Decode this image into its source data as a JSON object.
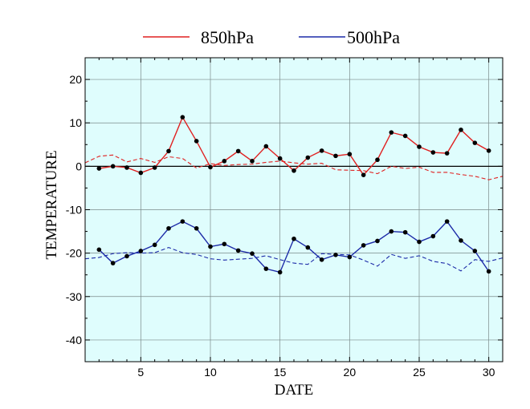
{
  "chart_data": {
    "type": "line",
    "xlabel": "DATE",
    "ylabel": "TEMPERATURE",
    "xlim": [
      1,
      31
    ],
    "ylim": [
      -45,
      25
    ],
    "xticks": [
      5,
      10,
      15,
      20,
      25,
      30
    ],
    "yticks": [
      20,
      10,
      0,
      -10,
      -20,
      -30,
      -40
    ],
    "grid": true,
    "zero_line": true,
    "background_color": "#dffdfd",
    "legend_position": "top",
    "series": [
      {
        "name": "850hPa",
        "color": "#e02020",
        "style": "solid-markers",
        "x": [
          2,
          3,
          4,
          5,
          6,
          7,
          8,
          9,
          10,
          11,
          12,
          13,
          14,
          15,
          16,
          17,
          18,
          19,
          20,
          21,
          22,
          23,
          24,
          25,
          26,
          27,
          28,
          29,
          30
        ],
        "values": [
          -0.5,
          0,
          -0.3,
          -1.5,
          -0.3,
          3.5,
          11.3,
          5.8,
          -0.2,
          1.2,
          3.5,
          1.2,
          4.6,
          1.8,
          -1,
          2,
          3.6,
          2.4,
          2.8,
          -2,
          1.5,
          7.8,
          7,
          4.5,
          3.2,
          3,
          8.4,
          5.4,
          3.6
        ]
      },
      {
        "name": "500hPa",
        "color": "#1c2aa8",
        "style": "solid-markers",
        "x": [
          2,
          3,
          4,
          5,
          6,
          7,
          8,
          9,
          10,
          11,
          12,
          13,
          14,
          15,
          16,
          17,
          18,
          19,
          20,
          21,
          22,
          23,
          24,
          25,
          26,
          27,
          28,
          29,
          30
        ],
        "values": [
          -19.2,
          -22.3,
          -20.7,
          -19.5,
          -18.1,
          -14.3,
          -12.7,
          -14.3,
          -18.5,
          -17.9,
          -19.4,
          -20.1,
          -23.6,
          -24.4,
          -16.7,
          -18.7,
          -21.5,
          -20.4,
          -20.9,
          -18.2,
          -17.2,
          -15,
          -15.2,
          -17.4,
          -16.1,
          -12.7,
          -17.1,
          -19.5,
          -24.2
        ]
      },
      {
        "color": "#e02020",
        "style": "dashed",
        "x": [
          1,
          2,
          3,
          4,
          5,
          6,
          7,
          8,
          9,
          10,
          11,
          12,
          13,
          14,
          15,
          16,
          17,
          18,
          19,
          20,
          21,
          22,
          23,
          24,
          25,
          26,
          27,
          28,
          29,
          30,
          31
        ],
        "values": [
          0.8,
          2.3,
          2.6,
          1,
          1.8,
          0.9,
          2.2,
          1.8,
          -0.4,
          0.6,
          0.2,
          0.4,
          0.5,
          0.9,
          1.2,
          0.8,
          0.5,
          0.7,
          -0.8,
          -0.9,
          -1,
          -1.7,
          0,
          -0.5,
          -0.2,
          -1.4,
          -1.4,
          -1.9,
          -2.3,
          -3.1,
          -2.3
        ]
      },
      {
        "color": "#1c2aa8",
        "style": "dashed",
        "x": [
          1,
          2,
          3,
          4,
          5,
          6,
          7,
          8,
          9,
          10,
          11,
          12,
          13,
          14,
          15,
          16,
          17,
          18,
          19,
          20,
          21,
          22,
          23,
          24,
          25,
          26,
          27,
          28,
          29,
          30,
          31
        ],
        "values": [
          -21.3,
          -21,
          -20.1,
          -19.9,
          -20,
          -19.9,
          -18.7,
          -19.9,
          -20.3,
          -21.3,
          -21.6,
          -21.4,
          -21.2,
          -20.6,
          -21.5,
          -22.3,
          -22.6,
          -20.1,
          -20.3,
          -20.4,
          -21.6,
          -23,
          -20.3,
          -21.2,
          -20.6,
          -21.9,
          -22.4,
          -24.1,
          -21.5,
          -21.9,
          -21.1
        ]
      }
    ]
  }
}
